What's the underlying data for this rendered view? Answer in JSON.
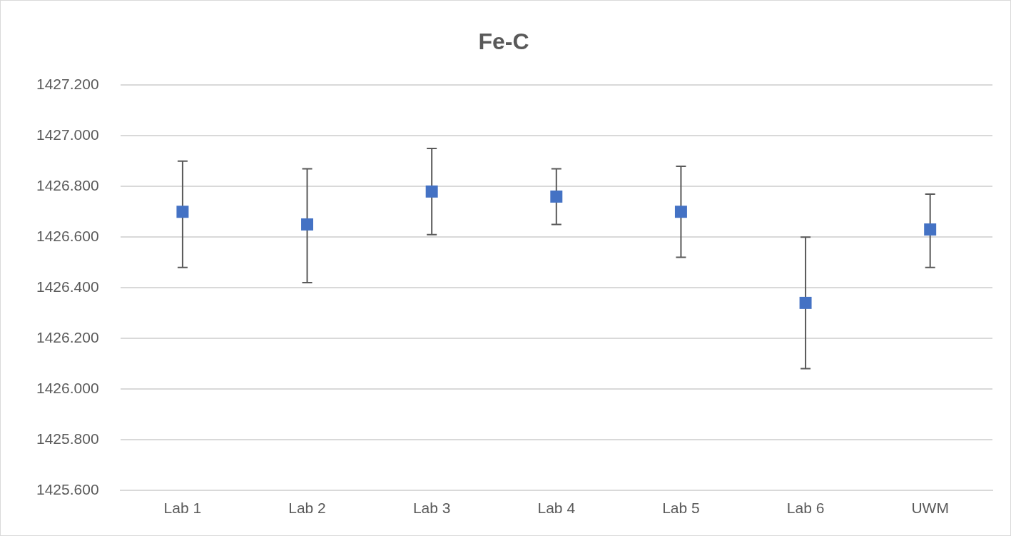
{
  "chart_data": {
    "type": "scatter",
    "title": "Fe-C",
    "categories": [
      "Lab 1",
      "Lab 2",
      "Lab 3",
      "Lab 4",
      "Lab 5",
      "Lab 6",
      "UWM"
    ],
    "values": [
      1426.7,
      1426.65,
      1426.78,
      1426.76,
      1426.7,
      1426.34,
      1426.63
    ],
    "errors": [
      [
        1426.48,
        1426.9
      ],
      [
        1426.42,
        1426.87
      ],
      [
        1426.61,
        1426.95
      ],
      [
        1426.65,
        1426.87
      ],
      [
        1426.52,
        1426.88
      ],
      [
        1426.08,
        1426.6
      ],
      [
        1426.48,
        1426.77
      ]
    ],
    "color": "#4472c4",
    "marker": "square",
    "grid": "y",
    "legend": false,
    "ylim": [
      1425.6,
      1427.2
    ],
    "yticks": [
      {
        "value": 1425.6,
        "label": "1425.600"
      },
      {
        "value": 1425.8,
        "label": "1425.800"
      },
      {
        "value": 1426.0,
        "label": "1426.000"
      },
      {
        "value": 1426.2,
        "label": "1426.200"
      },
      {
        "value": 1426.4,
        "label": "1426.400"
      },
      {
        "value": 1426.6,
        "label": "1426.600"
      },
      {
        "value": 1426.8,
        "label": "1426.800"
      },
      {
        "value": 1427.0,
        "label": "1427.000"
      },
      {
        "value": 1427.2,
        "label": "1427.200"
      }
    ]
  }
}
